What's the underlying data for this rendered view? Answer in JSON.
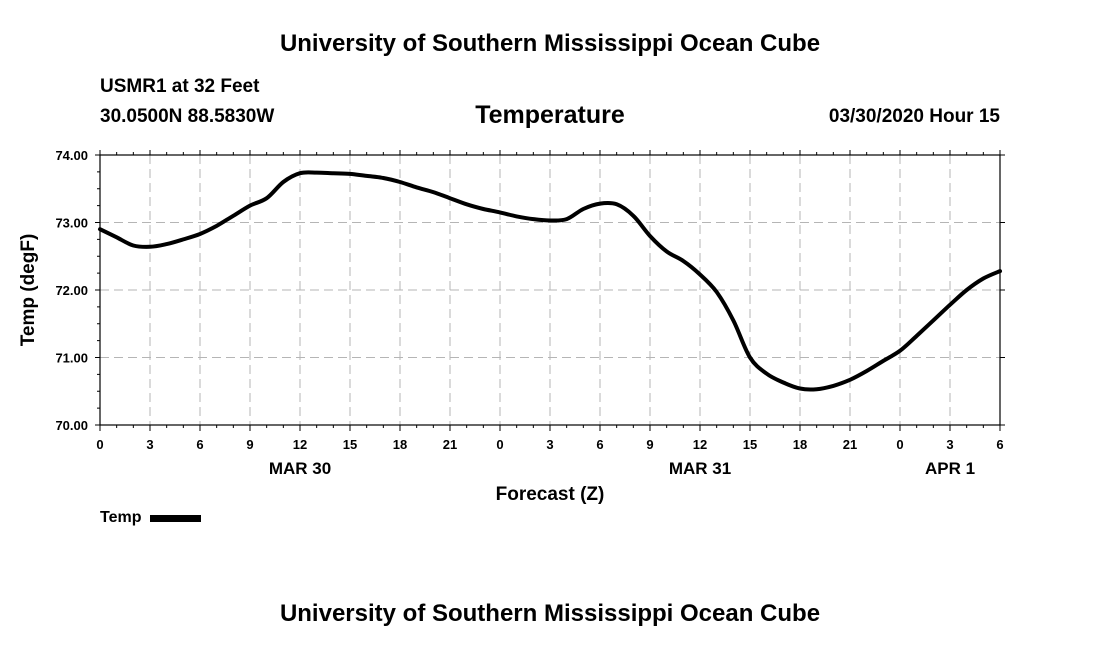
{
  "header": {
    "top_title": "University of Southern Mississippi Ocean Cube",
    "station": "USMR1 at 32 Feet",
    "coords": "30.0500N 88.5830W",
    "variable": "Temperature",
    "timestamp": "03/30/2020 Hour 15"
  },
  "footer": {
    "bottom_title": "University of Southern Mississippi Ocean Cube"
  },
  "legend": {
    "label": "Temp"
  },
  "colors": {
    "series": "#000000",
    "grid": "#b5b5b5",
    "axis": "#000000"
  },
  "chart_data": {
    "type": "line",
    "xlabel": "Forecast (Z)",
    "ylabel": "Temp (degF)",
    "ylim": [
      70.0,
      74.0
    ],
    "yticks": [
      "70.00",
      "71.00",
      "72.00",
      "73.00",
      "74.00"
    ],
    "xlim": [
      0,
      54
    ],
    "xtick_labels": [
      "0",
      "3",
      "6",
      "9",
      "12",
      "15",
      "18",
      "21",
      "0",
      "3",
      "6",
      "9",
      "12",
      "15",
      "18",
      "21",
      "0",
      "3",
      "6"
    ],
    "date_labels": [
      {
        "text": "MAR 30",
        "x": 12
      },
      {
        "text": "MAR 31",
        "x": 36
      },
      {
        "text": "APR 1",
        "x": 51
      }
    ],
    "series": [
      {
        "name": "Temp",
        "x": [
          0,
          1,
          2,
          3,
          4,
          5,
          6,
          7,
          8,
          9,
          10,
          11,
          12,
          13,
          14,
          15,
          16,
          17,
          18,
          19,
          20,
          21,
          22,
          23,
          24,
          25,
          26,
          27,
          28,
          29,
          30,
          31,
          32,
          33,
          34,
          35,
          36,
          37,
          38,
          39,
          40,
          41,
          42,
          43,
          44,
          45,
          46,
          47,
          48,
          49,
          50,
          51,
          52,
          53,
          54
        ],
        "values": [
          72.9,
          72.78,
          72.66,
          72.64,
          72.68,
          72.75,
          72.83,
          72.95,
          73.1,
          73.25,
          73.36,
          73.6,
          73.73,
          73.74,
          73.73,
          73.72,
          73.69,
          73.66,
          73.6,
          73.52,
          73.45,
          73.36,
          73.27,
          73.2,
          73.15,
          73.09,
          73.05,
          73.03,
          73.05,
          73.2,
          73.28,
          73.27,
          73.1,
          72.8,
          72.57,
          72.43,
          72.23,
          71.97,
          71.55,
          71.0,
          70.76,
          70.63,
          70.54,
          70.53,
          70.58,
          70.67,
          70.8,
          70.95,
          71.1,
          71.32,
          71.55,
          71.78,
          72.0,
          72.17,
          72.28
        ]
      }
    ]
  }
}
